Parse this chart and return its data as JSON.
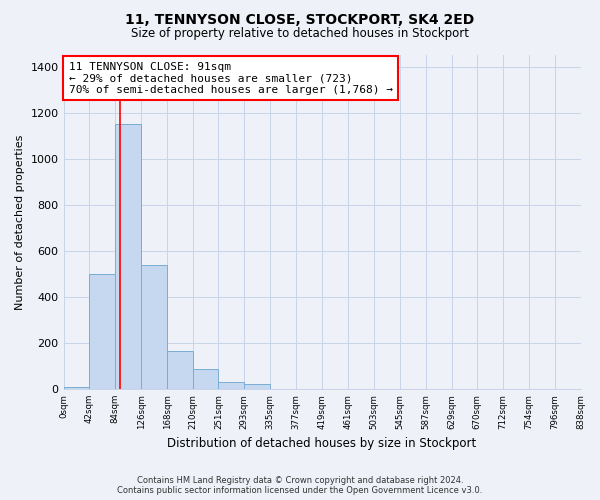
{
  "title": "11, TENNYSON CLOSE, STOCKPORT, SK4 2ED",
  "subtitle": "Size of property relative to detached houses in Stockport",
  "xlabel": "Distribution of detached houses by size in Stockport",
  "ylabel": "Number of detached properties",
  "bar_values": [
    10,
    500,
    1150,
    540,
    165,
    85,
    30,
    20,
    0,
    0,
    0,
    0,
    0,
    0,
    0,
    0,
    0,
    0,
    0,
    0
  ],
  "bin_labels": [
    "0sqm",
    "42sqm",
    "84sqm",
    "126sqm",
    "168sqm",
    "210sqm",
    "251sqm",
    "293sqm",
    "335sqm",
    "377sqm",
    "419sqm",
    "461sqm",
    "503sqm",
    "545sqm",
    "587sqm",
    "629sqm",
    "670sqm",
    "712sqm",
    "754sqm",
    "796sqm",
    "838sqm"
  ],
  "bar_color": "#c5d8f0",
  "bar_edge_color": "#7aadd4",
  "annotation_box_text": "11 TENNYSON CLOSE: 91sqm\n← 29% of detached houses are smaller (723)\n70% of semi-detached houses are larger (1,768) →",
  "annotation_box_color": "white",
  "annotation_box_edge_color": "red",
  "vline_x": 91,
  "ylim": [
    0,
    1450
  ],
  "yticks": [
    0,
    200,
    400,
    600,
    800,
    1000,
    1200,
    1400
  ],
  "footer_line1": "Contains HM Land Registry data © Crown copyright and database right 2024.",
  "footer_line2": "Contains public sector information licensed under the Open Government Licence v3.0.",
  "bin_edges": [
    0,
    42,
    84,
    126,
    168,
    210,
    251,
    293,
    335,
    377,
    419,
    461,
    503,
    545,
    587,
    629,
    670,
    712,
    754,
    796,
    838
  ],
  "background_color": "#eef2f8"
}
